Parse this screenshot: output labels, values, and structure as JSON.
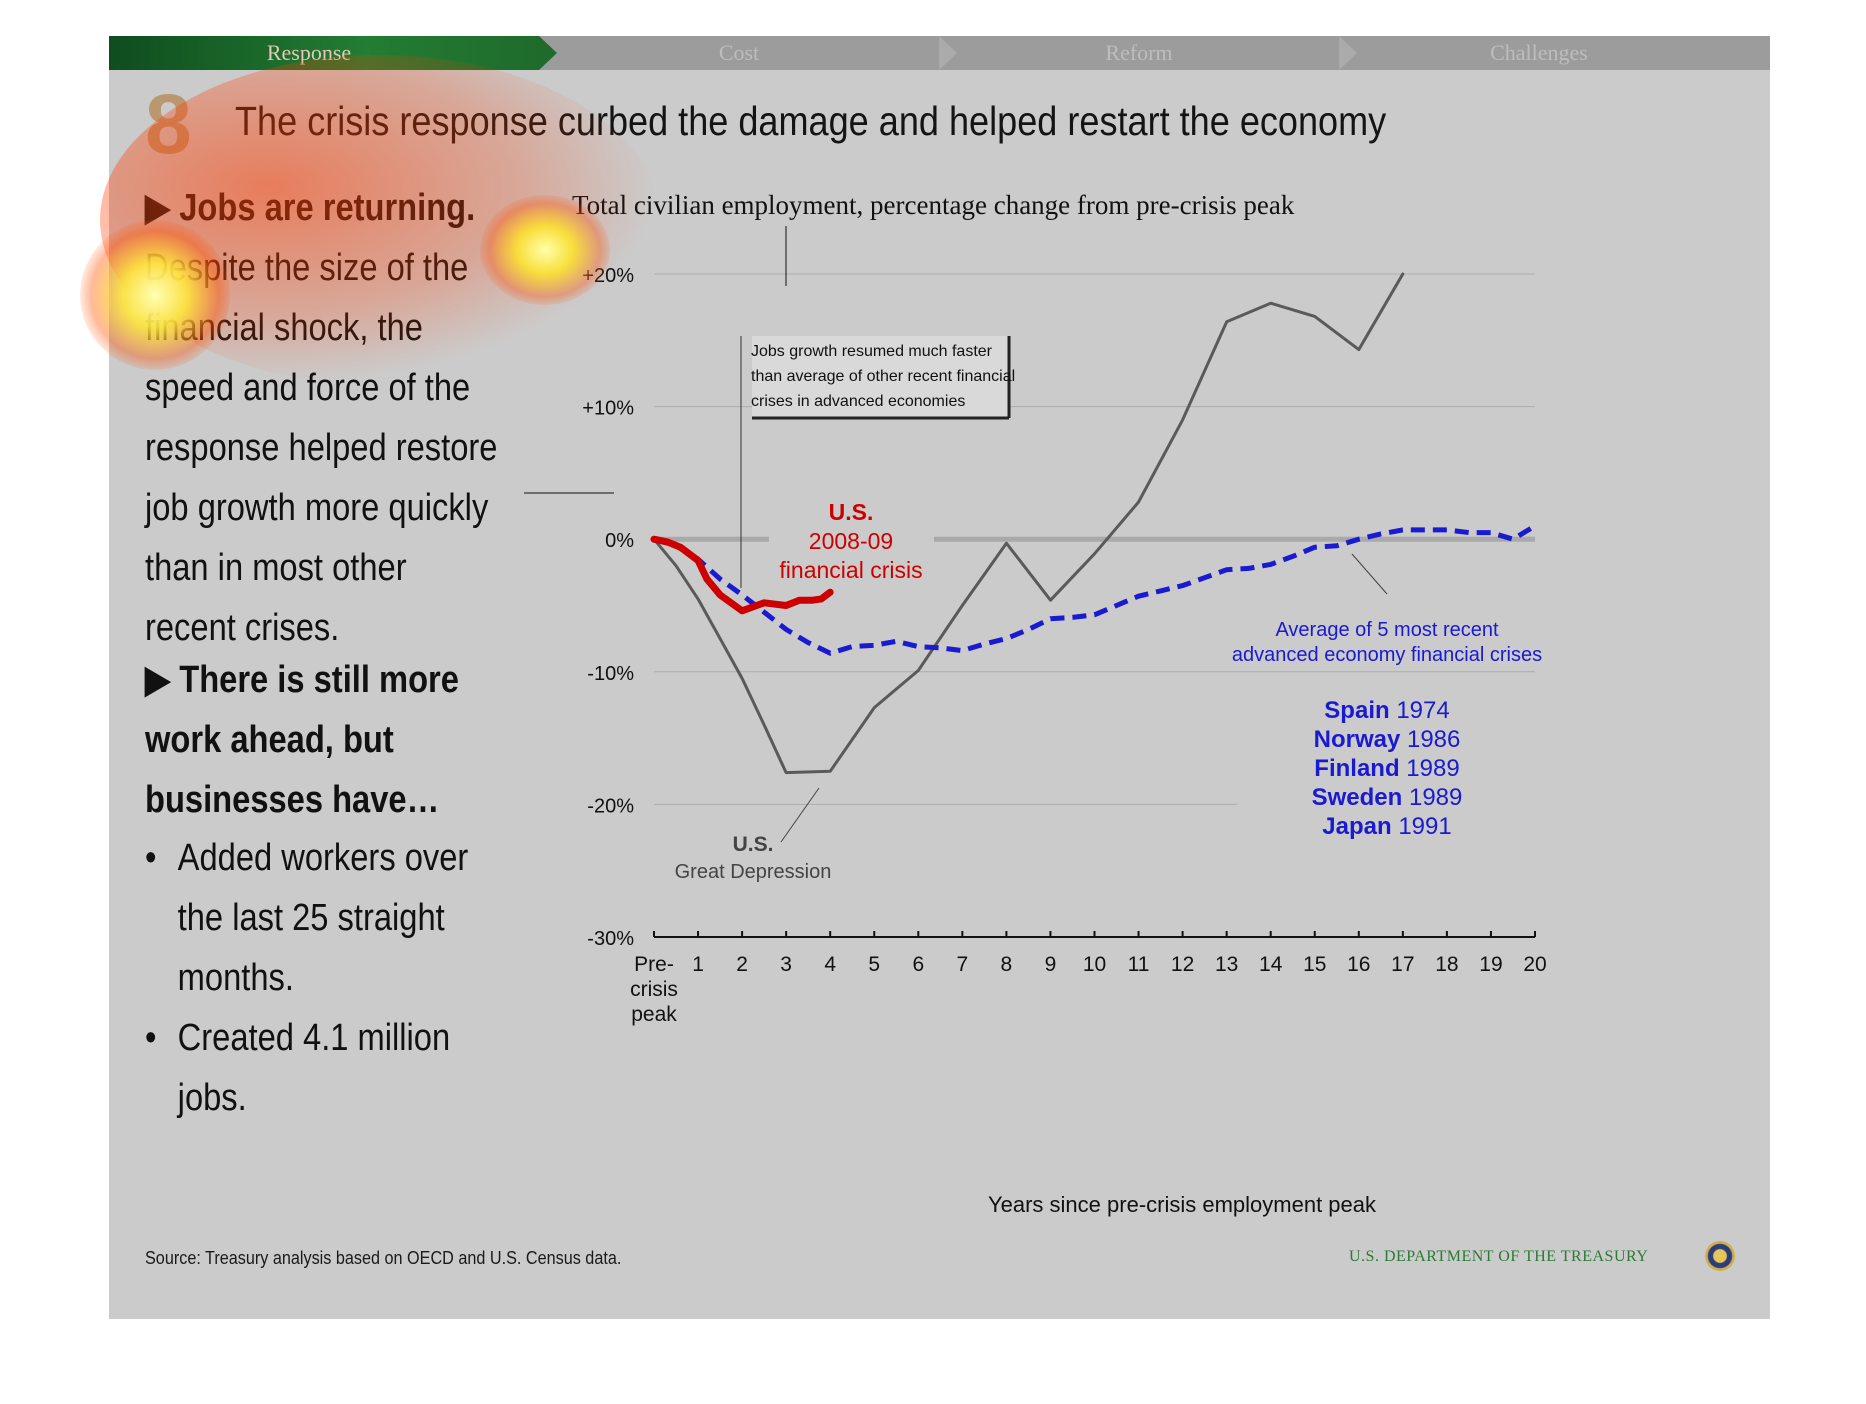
{
  "nav": {
    "tabs": [
      "Response",
      "Cost",
      "Reform",
      "Challenges"
    ],
    "active_color": "#1f6b2c"
  },
  "slide": {
    "number": "8",
    "title": "The crisis response curbed the damage and helped restart the economy"
  },
  "left": {
    "heading1": "Jobs are returning.",
    "para1_lines": [
      "Despite the size of the",
      "financial shock, the",
      "speed and force of the",
      "response helped restore",
      "job growth more quickly",
      "than in most other",
      "recent crises."
    ],
    "heading2_lines": [
      "There is still more",
      "work ahead, but",
      "businesses have…"
    ],
    "bullets": [
      {
        "lines": [
          "Added workers over",
          "the last 25 straight",
          "months."
        ]
      },
      {
        "lines": [
          "Created 4.1 million",
          "jobs."
        ]
      }
    ],
    "arrow_glyph": "▶",
    "bullet_glyph": "•"
  },
  "footer": {
    "source": "Source: Treasury analysis based on OECD and U.S. Census data.",
    "agency": "U.S. DEPARTMENT OF THE TREASURY"
  },
  "chart_data": {
    "type": "line",
    "title": "Total civilian employment, percentage change from pre-crisis peak",
    "xlabel": "Years since pre-crisis employment peak",
    "ylabel": "",
    "x_ticks": [
      "Pre-\ncrisis\npeak",
      "1",
      "2",
      "3",
      "4",
      "5",
      "6",
      "7",
      "8",
      "9",
      "10",
      "11",
      "12",
      "13",
      "14",
      "15",
      "16",
      "17",
      "18",
      "19",
      "20"
    ],
    "xlim": [
      0,
      20
    ],
    "ylim": [
      -30,
      20
    ],
    "y_ticks": [
      20,
      10,
      0,
      -10,
      -20,
      -30
    ],
    "y_tick_labels": [
      "+20%",
      "+10%",
      "0%",
      "-10%",
      "-20%",
      "-30%"
    ],
    "grid": true,
    "series": [
      {
        "name": "U.S. Great Depression",
        "color": "#5a5a5a",
        "style": "solid",
        "x": [
          0,
          0.5,
          1,
          1.5,
          2,
          2.5,
          3,
          4,
          5,
          6,
          7,
          8,
          9,
          10,
          11,
          12,
          13,
          14,
          15,
          16,
          17
        ],
        "y": [
          0,
          -2,
          -4.5,
          -7.5,
          -10.5,
          -14,
          -17.6,
          -17.5,
          -12.7,
          -9.9,
          -5,
          -0.3,
          -4.6,
          -1.1,
          2.8,
          9,
          16.4,
          17.8,
          16.8,
          14.3,
          20
        ]
      },
      {
        "name": "Average of 5 most recent advanced economy financial crises",
        "color": "#1a1ad0",
        "style": "dashed",
        "x": [
          0,
          0.5,
          1,
          1.5,
          2,
          2.5,
          3,
          3.5,
          4,
          4.5,
          5,
          5.5,
          6,
          6.5,
          7,
          7.5,
          8,
          8.5,
          9,
          9.5,
          10,
          10.5,
          11,
          11.5,
          12,
          12.5,
          13,
          13.5,
          14,
          14.5,
          15,
          15.5,
          16,
          16.5,
          17,
          17.5,
          18,
          18.5,
          19,
          19.5,
          20
        ],
        "y": [
          0,
          -0.5,
          -1.5,
          -3,
          -4.2,
          -5.5,
          -6.8,
          -7.8,
          -8.6,
          -8.1,
          -8,
          -7.7,
          -8.1,
          -8.2,
          -8.4,
          -7.9,
          -7.5,
          -6.8,
          -6,
          -5.9,
          -5.7,
          -5,
          -4.3,
          -3.9,
          -3.5,
          -2.9,
          -2.3,
          -2.2,
          -1.9,
          -1.3,
          -0.6,
          -0.5,
          0,
          0.4,
          0.7,
          0.7,
          0.7,
          0.5,
          0.5,
          0,
          1
        ]
      },
      {
        "name": "U.S. 2008-09 financial crisis",
        "color": "#cc0000",
        "style": "solid-thick",
        "x": [
          0,
          0.3,
          0.6,
          1,
          1.2,
          1.5,
          2,
          2.5,
          3,
          3.3,
          3.6,
          3.8,
          4
        ],
        "y": [
          0,
          -0.2,
          -0.6,
          -1.6,
          -3,
          -4.2,
          -5.4,
          -4.8,
          -5,
          -4.6,
          -4.6,
          -4.5,
          -4
        ]
      }
    ],
    "annotations": {
      "callout": [
        "Jobs growth resumed much faster",
        "than average of other recent financial",
        "crises in advanced economies"
      ],
      "us2008": [
        "U.S.",
        "2008-09",
        "financial crisis"
      ],
      "depression": [
        "U.S.",
        "Great Depression"
      ],
      "average": [
        "Average of 5 most recent",
        "advanced economy financial crises"
      ],
      "countries": [
        {
          "name": "Spain",
          "year": "1974"
        },
        {
          "name": "Norway",
          "year": "1986"
        },
        {
          "name": "Finland",
          "year": "1989"
        },
        {
          "name": "Sweden",
          "year": "1989"
        },
        {
          "name": "Japan",
          "year": "1991"
        }
      ]
    }
  }
}
